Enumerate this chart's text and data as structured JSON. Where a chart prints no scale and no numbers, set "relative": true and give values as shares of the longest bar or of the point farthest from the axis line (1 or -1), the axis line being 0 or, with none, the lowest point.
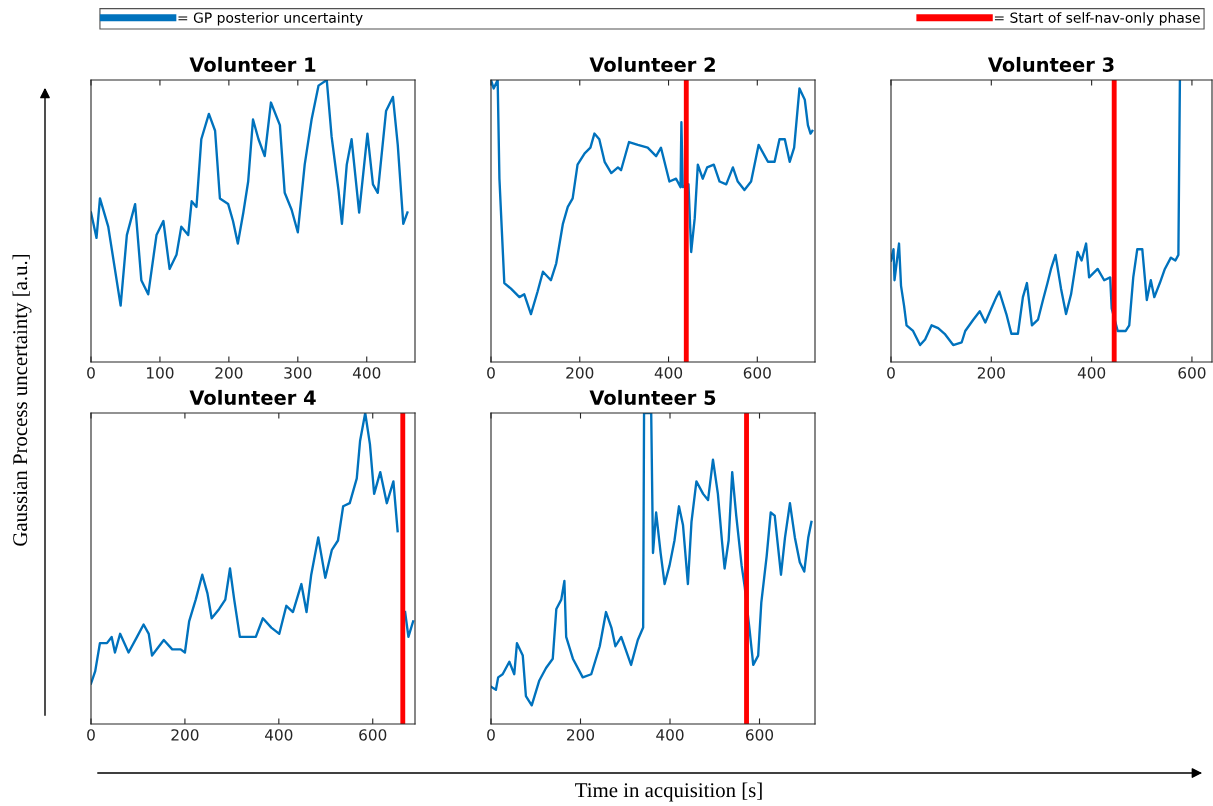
{
  "chart_data": [
    {
      "type": "line",
      "title": "Volunteer 1",
      "ylabel": "Gaussian Process uncertainty [a.u.]",
      "relative": true,
      "legend": "top",
      "grid": false,
      "xlim": [
        0,
        470
      ],
      "xticks": [
        0,
        100,
        200,
        300,
        400
      ],
      "series": [
        {
          "name": "= GP posterior uncertainty",
          "color": "#0072bd",
          "x": [
            0,
            8,
            13,
            25,
            43,
            52,
            64,
            73,
            83,
            95,
            105,
            114,
            124,
            131,
            141,
            146,
            153,
            160,
            171,
            180,
            187,
            199,
            206,
            213,
            221,
            228,
            235,
            243,
            252,
            261,
            274,
            281,
            291,
            300,
            310,
            320,
            330,
            342,
            349,
            359,
            364,
            371,
            378,
            389,
            401,
            409,
            416,
            428,
            438,
            445,
            453,
            459
          ],
          "values": [
            0.53,
            0.44,
            0.58,
            0.48,
            0.2,
            0.45,
            0.56,
            0.29,
            0.24,
            0.45,
            0.5,
            0.33,
            0.38,
            0.48,
            0.45,
            0.57,
            0.55,
            0.79,
            0.88,
            0.82,
            0.58,
            0.56,
            0.5,
            0.42,
            0.53,
            0.64,
            0.86,
            0.79,
            0.73,
            0.92,
            0.84,
            0.6,
            0.54,
            0.46,
            0.7,
            0.86,
            0.98,
            1.0,
            0.8,
            0.61,
            0.49,
            0.7,
            0.79,
            0.53,
            0.81,
            0.63,
            0.6,
            0.89,
            0.94,
            0.77,
            0.49,
            0.53
          ]
        }
      ]
    },
    {
      "type": "line",
      "title": "Volunteer 2",
      "relative": true,
      "xlim": [
        0,
        730
      ],
      "xticks": [
        0,
        200,
        400,
        600
      ],
      "ref_lines": [
        {
          "axis": "x",
          "value": 440,
          "label": "= Start of self-nav-only phase",
          "color": "#ff0000"
        }
      ],
      "series": [
        {
          "color": "#0072bd",
          "x": [
            0,
            6,
            15,
            19,
            24,
            30,
            45,
            64,
            75,
            90,
            105,
            117,
            135,
            147,
            162,
            173,
            184,
            195,
            211,
            224,
            233,
            244,
            256,
            271,
            286,
            293,
            311,
            331,
            353,
            372,
            383,
            402,
            417,
            427,
            429,
            432,
            445,
            451,
            459,
            466,
            477,
            487,
            502,
            515,
            530,
            545,
            556,
            571,
            586,
            603,
            624,
            639,
            650,
            662,
            673,
            683,
            695,
            707,
            714,
            720,
            724
          ],
          "values": [
            1.0,
            0.97,
            1.0,
            0.65,
            0.48,
            0.28,
            0.26,
            0.23,
            0.24,
            0.17,
            0.25,
            0.32,
            0.29,
            0.35,
            0.49,
            0.55,
            0.58,
            0.7,
            0.74,
            0.76,
            0.81,
            0.79,
            0.71,
            0.67,
            0.69,
            0.68,
            0.78,
            0.77,
            0.76,
            0.73,
            0.76,
            0.64,
            0.65,
            0.62,
            0.85,
            0.62,
            0.63,
            0.39,
            0.51,
            0.7,
            0.65,
            0.69,
            0.7,
            0.64,
            0.63,
            0.69,
            0.64,
            0.61,
            0.64,
            0.77,
            0.71,
            0.71,
            0.79,
            0.79,
            0.71,
            0.76,
            0.97,
            0.93,
            0.84,
            0.81,
            0.82
          ]
        }
      ]
    },
    {
      "type": "line",
      "title": "Volunteer 3",
      "relative": true,
      "xlim": [
        0,
        640
      ],
      "xticks": [
        0,
        200,
        400,
        600
      ],
      "ref_lines": [
        {
          "axis": "x",
          "value": 445,
          "color": "#ff0000"
        }
      ],
      "series": [
        {
          "color": "#0072bd",
          "x": [
            0,
            5,
            7,
            16,
            20,
            26,
            31,
            44,
            58,
            68,
            81,
            94,
            107,
            124,
            141,
            148,
            164,
            177,
            188,
            200,
            210,
            216,
            230,
            240,
            253,
            263,
            271,
            281,
            293,
            303,
            312,
            319,
            328,
            339,
            349,
            359,
            372,
            380,
            389,
            395,
            412,
            425,
            437,
            440,
            452,
            468,
            475,
            483,
            491,
            501,
            510,
            518,
            525,
            536,
            546,
            558,
            567,
            573,
            576
          ],
          "values": [
            0.36,
            0.4,
            0.29,
            0.42,
            0.27,
            0.2,
            0.13,
            0.11,
            0.06,
            0.08,
            0.13,
            0.12,
            0.1,
            0.06,
            0.07,
            0.11,
            0.15,
            0.18,
            0.14,
            0.19,
            0.23,
            0.25,
            0.17,
            0.1,
            0.1,
            0.23,
            0.28,
            0.13,
            0.15,
            0.22,
            0.28,
            0.33,
            0.38,
            0.26,
            0.17,
            0.24,
            0.39,
            0.36,
            0.42,
            0.3,
            0.33,
            0.29,
            0.3,
            0.19,
            0.11,
            0.11,
            0.13,
            0.3,
            0.4,
            0.4,
            0.22,
            0.29,
            0.23,
            0.28,
            0.33,
            0.37,
            0.36,
            0.38,
            1.0
          ]
        }
      ]
    },
    {
      "type": "line",
      "title": "Volunteer 4",
      "relative": true,
      "xlim": [
        0,
        690
      ],
      "xticks": [
        0,
        200,
        400,
        600
      ],
      "ref_lines": [
        {
          "axis": "x",
          "value": 664,
          "color": "#ff0000"
        }
      ],
      "series": [
        {
          "color": "#0072bd",
          "x": [
            0,
            9,
            19,
            34,
            44,
            51,
            62,
            80,
            98,
            112,
            123,
            130,
            155,
            173,
            191,
            200,
            209,
            223,
            237,
            248,
            257,
            273,
            286,
            296,
            305,
            317,
            337,
            351,
            366,
            384,
            401,
            416,
            430,
            448,
            459,
            469,
            484,
            499,
            513,
            526,
            537,
            551,
            566,
            573,
            584,
            594,
            603,
            616,
            630,
            644,
            653,
            662,
            669,
            676,
            686
          ],
          "values": [
            0.13,
            0.17,
            0.26,
            0.26,
            0.28,
            0.23,
            0.29,
            0.23,
            0.28,
            0.32,
            0.29,
            0.22,
            0.27,
            0.24,
            0.24,
            0.23,
            0.33,
            0.4,
            0.48,
            0.42,
            0.34,
            0.37,
            0.4,
            0.5,
            0.4,
            0.28,
            0.28,
            0.28,
            0.34,
            0.31,
            0.29,
            0.38,
            0.36,
            0.45,
            0.36,
            0.48,
            0.6,
            0.47,
            0.56,
            0.59,
            0.7,
            0.71,
            0.79,
            0.91,
            1.0,
            0.9,
            0.74,
            0.81,
            0.71,
            0.78,
            0.62,
            null,
            0.36,
            0.28,
            0.33
          ]
        }
      ]
    },
    {
      "type": "line",
      "title": "Volunteer 5",
      "xlabel": "Time in acquisition [s]",
      "relative": true,
      "xlim": [
        0,
        724
      ],
      "xticks": [
        0,
        200,
        400,
        600
      ],
      "ref_lines": [
        {
          "axis": "x",
          "value": 571,
          "color": "#ff0000"
        }
      ],
      "series": [
        {
          "color": "#0072bd",
          "x": [
            0,
            11,
            16,
            26,
            41,
            52,
            58,
            71,
            78,
            91,
            108,
            123,
            138,
            146,
            157,
            164,
            168,
            183,
            205,
            224,
            243,
            257,
            269,
            278,
            291,
            313,
            328,
            340,
            342,
            358,
            362,
            369,
            379,
            388,
            399,
            410,
            420,
            429,
            440,
            448,
            459,
            474,
            485,
            496,
            507,
            516,
            522,
            531,
            539,
            548,
            560,
            567,
            578,
            586,
            597,
            604,
            616,
            625,
            634,
            648,
            657,
            668,
            679,
            690,
            700,
            709,
            716
          ],
          "values": [
            0.12,
            0.11,
            0.15,
            0.16,
            0.2,
            0.16,
            0.26,
            0.22,
            0.09,
            0.06,
            0.14,
            0.18,
            0.21,
            0.37,
            0.4,
            0.46,
            0.28,
            0.21,
            0.15,
            0.16,
            0.25,
            0.36,
            0.31,
            0.25,
            0.28,
            0.19,
            0.27,
            0.31,
            1.0,
            1.0,
            0.55,
            0.68,
            0.55,
            0.45,
            0.51,
            0.59,
            0.7,
            0.64,
            0.45,
            0.65,
            0.78,
            0.74,
            0.72,
            0.85,
            0.74,
            0.59,
            0.5,
            0.59,
            0.81,
            0.67,
            0.51,
            0.44,
            0.3,
            0.19,
            0.22,
            0.39,
            0.54,
            0.68,
            0.67,
            0.48,
            0.6,
            0.71,
            0.6,
            0.52,
            0.49,
            0.6,
            0.65
          ]
        }
      ]
    }
  ]
}
